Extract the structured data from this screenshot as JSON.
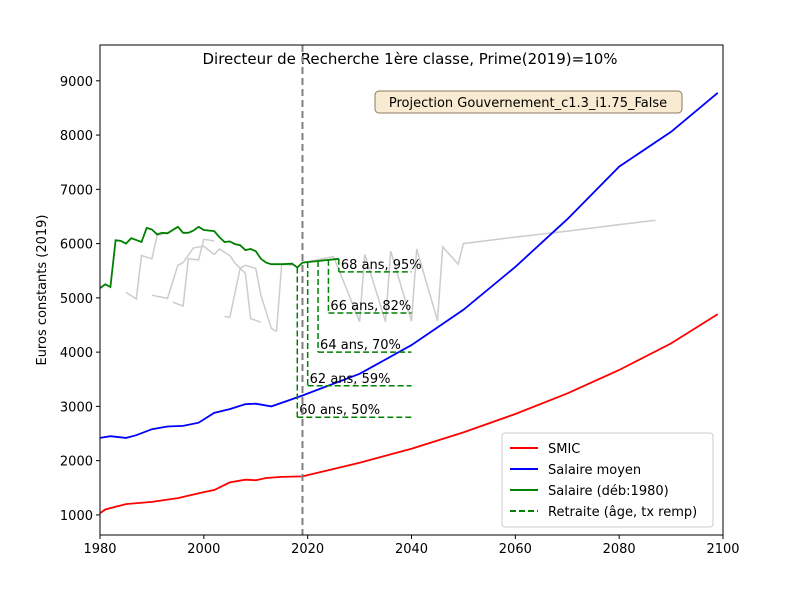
{
  "chart_data": {
    "type": "line",
    "title": "Directeur de Recherche 1ère classe, Prime(2019)=10%",
    "ylabel": "Euros constants (2019)",
    "annotation": "Projection Gouvernement_c1.3_i1.75_False",
    "vline": 2019,
    "xlim": [
      1980,
      2100
    ],
    "xticks": [
      1980,
      2000,
      2020,
      2040,
      2060,
      2080,
      2100
    ],
    "ylim": [
      630,
      9660
    ],
    "yticks": [
      1000,
      2000,
      3000,
      4000,
      5000,
      6000,
      7000,
      8000,
      9000
    ],
    "legend": "lower right",
    "series": [
      {
        "name": "SMIC",
        "color": "#ff0000",
        "x": [
          1980,
          1981,
          1983,
          1985,
          1990,
          1995,
          2000,
          2002,
          2005,
          2008,
          2010,
          2012,
          2015,
          2019,
          2030,
          2040,
          2050,
          2060,
          2070,
          2080,
          2090,
          2099
        ],
        "values": [
          1030,
          1100,
          1150,
          1200,
          1240,
          1310,
          1420,
          1460,
          1600,
          1650,
          1640,
          1680,
          1700,
          1710,
          1960,
          2220,
          2520,
          2860,
          3240,
          3670,
          4160,
          4700
        ]
      },
      {
        "name": "Salaire moyen",
        "color": "#0000ff",
        "x": [
          1980,
          1982,
          1985,
          1987,
          1990,
          1993,
          1996,
          1999,
          2002,
          2005,
          2008,
          2010,
          2013,
          2016,
          2019,
          2030,
          2040,
          2050,
          2060,
          2070,
          2080,
          2090,
          2099
        ],
        "values": [
          2420,
          2450,
          2420,
          2470,
          2580,
          2630,
          2640,
          2700,
          2880,
          2950,
          3040,
          3050,
          3000,
          3100,
          3200,
          3600,
          4130,
          4780,
          5570,
          6450,
          7420,
          8060,
          8780
        ]
      },
      {
        "name": "Salaire (déb:1980)",
        "color": "#008000",
        "x": [
          1980,
          1981,
          1982,
          1983,
          1984,
          1985,
          1986,
          1988,
          1989,
          1990,
          1991,
          1992,
          1993,
          1995,
          1996,
          1997,
          1998,
          1999,
          2000,
          2002,
          2003,
          2004,
          2005,
          2006,
          2007,
          2008,
          2009,
          2010,
          2011,
          2012,
          2013,
          2015,
          2017,
          2018,
          2019,
          2022,
          2026
        ],
        "values": [
          5180,
          5250,
          5200,
          6060,
          6050,
          6000,
          6100,
          6030,
          6290,
          6260,
          6170,
          6200,
          6190,
          6310,
          6200,
          6200,
          6240,
          6310,
          6250,
          6230,
          6120,
          6030,
          6040,
          5990,
          5970,
          5880,
          5900,
          5860,
          5720,
          5650,
          5620,
          5620,
          5630,
          5560,
          5650,
          5680,
          5720
        ]
      },
      {
        "name": "Retraite (âge, tx remp)",
        "color": "#008000",
        "dash": true,
        "x": [
          2018,
          2020,
          2022,
          2024,
          2026
        ],
        "x_end": 2040,
        "values": [
          2800,
          3380,
          4000,
          4720,
          5480
        ],
        "labels": [
          "60 ans, 50%",
          "62 ans, 59%",
          "64 ans, 70%",
          "66 ans, 82%",
          "68 ans, 95%"
        ]
      },
      {
        "color": "#cccccc",
        "x": [
          1985,
          1987,
          1988,
          1990,
          1991,
          1993,
          1994,
          1994,
          1996,
          1997,
          1999,
          2000,
          2002,
          2002,
          2004,
          2005,
          2007,
          2008,
          2010,
          2011,
          2013,
          2014
        ],
        "values": [
          5100,
          4980,
          5780,
          5720,
          6150,
          6200,
          null,
          4920,
          4850,
          5720,
          5700,
          6080,
          6050,
          null,
          4660,
          4640,
          5550,
          5600,
          5540,
          5050,
          4440,
          4380
        ]
      },
      {
        "color": "#cccccc",
        "x": [
          1990,
          1993,
          1995,
          1996,
          1998,
          2000,
          2002,
          2003,
          2005,
          2006,
          2008,
          2009,
          2011,
          2012,
          2014,
          2015,
          2017
        ],
        "values": [
          5050,
          4990,
          5600,
          5650,
          5920,
          5950,
          5800,
          5900,
          5780,
          5640,
          5450,
          4620,
          4550,
          null,
          4380,
          5620,
          5600
        ]
      },
      {
        "color": "#cccccc",
        "x": [
          2019,
          2025,
          2030,
          2031,
          2035,
          2036,
          2040,
          2041,
          2045,
          2046,
          2049,
          2050,
          2060,
          2070,
          2080,
          2087
        ],
        "values": [
          5650,
          5760,
          4560,
          5800,
          4560,
          5860,
          4570,
          5900,
          4580,
          5940,
          5620,
          6000,
          6120,
          6230,
          6350,
          6430
        ]
      }
    ]
  }
}
